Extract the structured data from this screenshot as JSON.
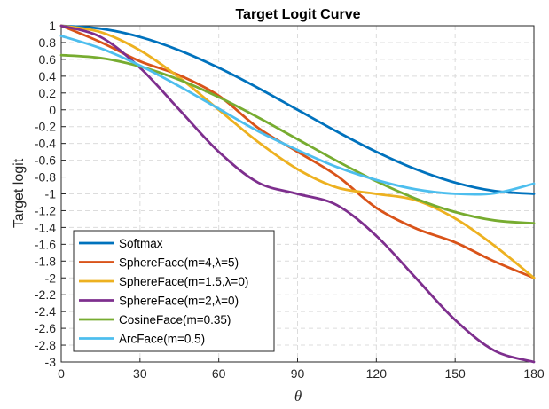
{
  "chart_data": {
    "type": "line",
    "title": "Target Logit Curve",
    "xlabel": "θ",
    "ylabel": "Target logit",
    "xlim": [
      0,
      180
    ],
    "ylim": [
      -3,
      1
    ],
    "x_ticks": [
      0,
      30,
      60,
      90,
      120,
      150,
      180
    ],
    "x_tick_labels": [
      "0",
      "30",
      "60",
      "90",
      "120",
      "150",
      "180"
    ],
    "y_ticks": [
      1,
      0.8,
      0.6,
      0.4,
      0.2,
      0,
      -0.2,
      -0.4,
      -0.6,
      -0.8,
      -1,
      -1.2,
      -1.4,
      -1.6,
      -1.8,
      -2,
      -2.2,
      -2.4,
      -2.6,
      -2.8,
      -3
    ],
    "y_tick_labels": [
      "1",
      "0.8",
      "0.6",
      "0.4",
      "0.2",
      "0",
      "-0.2",
      "-0.4",
      "-0.6",
      "-0.8",
      "-1",
      "-1.2",
      "-1.4",
      "-1.6",
      "-1.8",
      "-2",
      "-2.2",
      "-2.4",
      "-2.6",
      "-2.8",
      "-3"
    ],
    "grid": true,
    "legend_location": "bottom-left",
    "series": [
      {
        "name": "Softmax",
        "color": "#0072bd",
        "x": [
          0,
          15,
          30,
          45,
          60,
          75,
          90,
          105,
          120,
          135,
          150,
          165,
          180
        ],
        "y": [
          1,
          0.966,
          0.866,
          0.707,
          0.5,
          0.259,
          0,
          -0.259,
          -0.5,
          -0.707,
          -0.866,
          -0.966,
          -1
        ]
      },
      {
        "name": "SphereFace(m=4,λ=5)",
        "color": "#d95319",
        "x": [
          0,
          15,
          30,
          45,
          60,
          75,
          90,
          105,
          120,
          135,
          150,
          165,
          180
        ],
        "y": [
          1,
          0.805,
          0.577,
          0.411,
          0.167,
          -0.215,
          -0.5,
          -0.785,
          -1.167,
          -1.411,
          -1.577,
          -1.805,
          -2
        ]
      },
      {
        "name": "SphereFace(m=1.5,λ=0)",
        "color": "#edb120",
        "x": [
          0,
          15,
          30,
          45,
          60,
          75,
          90,
          105,
          120,
          135,
          150,
          165,
          180
        ],
        "y": [
          1,
          0.924,
          0.707,
          0.383,
          0,
          -0.383,
          -0.707,
          -0.924,
          -1,
          -1.076,
          -1.293,
          -1.617,
          -2
        ]
      },
      {
        "name": "SphereFace(m=2,λ=0)",
        "color": "#7e2f8e",
        "x": [
          0,
          15,
          30,
          45,
          60,
          75,
          90,
          105,
          120,
          135,
          150,
          165,
          180
        ],
        "y": [
          1,
          0.866,
          0.5,
          0,
          -0.5,
          -0.866,
          -1,
          -1.134,
          -1.5,
          -2,
          -2.5,
          -2.866,
          -3
        ]
      },
      {
        "name": "CosineFace(m=0.35)",
        "color": "#77ac30",
        "x": [
          0,
          15,
          30,
          45,
          60,
          75,
          90,
          105,
          120,
          135,
          150,
          165,
          180
        ],
        "y": [
          0.65,
          0.616,
          0.516,
          0.357,
          0.15,
          -0.091,
          -0.35,
          -0.609,
          -0.85,
          -1.057,
          -1.216,
          -1.316,
          -1.35
        ]
      },
      {
        "name": "ArcFace(m=0.5)",
        "color": "#4dbeee",
        "x": [
          0,
          15,
          30,
          45,
          60,
          75,
          90,
          105,
          120,
          135,
          150,
          165,
          180
        ],
        "y": [
          0.878,
          0.731,
          0.526,
          0.279,
          0.012,
          -0.255,
          -0.479,
          -0.681,
          -0.835,
          -0.946,
          -0.999,
          -0.993,
          -0.878
        ]
      }
    ]
  }
}
